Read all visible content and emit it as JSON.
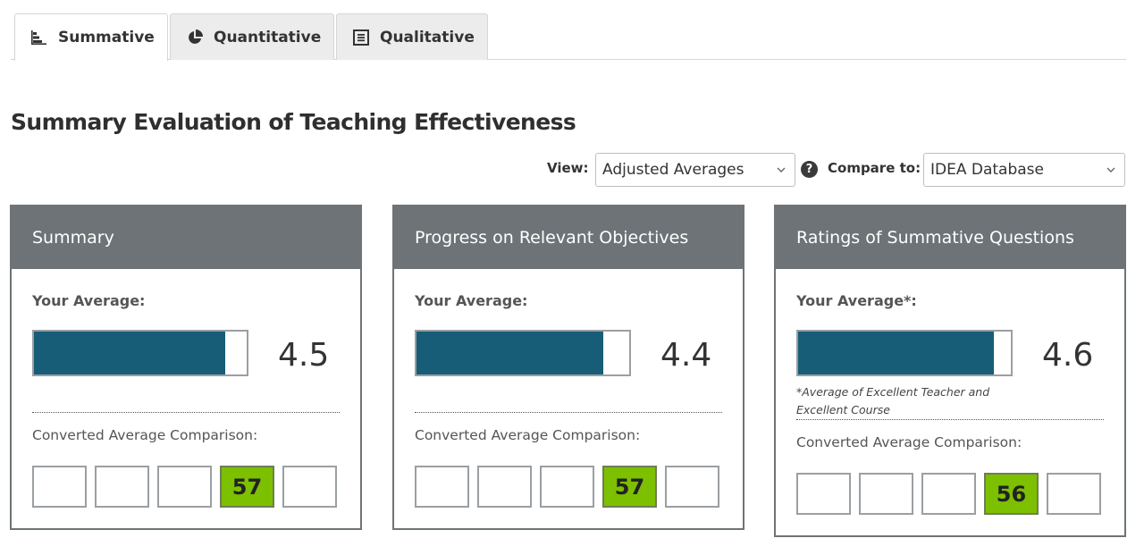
{
  "tabs": [
    {
      "label": "Summative",
      "icon": "bar-chart-icon",
      "active": true
    },
    {
      "label": "Quantitative",
      "icon": "pie-chart-icon",
      "active": false
    },
    {
      "label": "Qualitative",
      "icon": "list-document-icon",
      "active": false
    }
  ],
  "page_title": "Summary Evaluation of Teaching Effectiveness",
  "controls": {
    "view_label": "View:",
    "view_value": "Adjusted Averages",
    "help_symbol": "?",
    "compare_label": "Compare to:",
    "compare_value": "IDEA Database"
  },
  "cards": [
    {
      "title": "Summary",
      "avg_label": "Your Average:",
      "avg_value": "4.5",
      "bar_fill_fraction": 0.9,
      "footnote": "",
      "comparison_label": "Converted Average Comparison:",
      "boxes": [
        "",
        "",
        "",
        "57",
        ""
      ],
      "highlight_index": 3
    },
    {
      "title": "Progress on Relevant Objectives",
      "avg_label": "Your Average:",
      "avg_value": "4.4",
      "bar_fill_fraction": 0.88,
      "footnote": "",
      "comparison_label": "Converted Average Comparison:",
      "boxes": [
        "",
        "",
        "",
        "57",
        ""
      ],
      "highlight_index": 3
    },
    {
      "title": "Ratings of Summative Questions",
      "avg_label": "Your Average*:",
      "avg_value": "4.6",
      "bar_fill_fraction": 0.92,
      "footnote": "*Average of Excellent Teacher and Excellent Course",
      "comparison_label": "Converted Average Comparison:",
      "boxes": [
        "",
        "",
        "",
        "56",
        ""
      ],
      "highlight_index": 3
    }
  ],
  "colors": {
    "header_bg": "#6d7377",
    "bar_fill": "#175d78",
    "highlight_box": "#7cc000"
  }
}
